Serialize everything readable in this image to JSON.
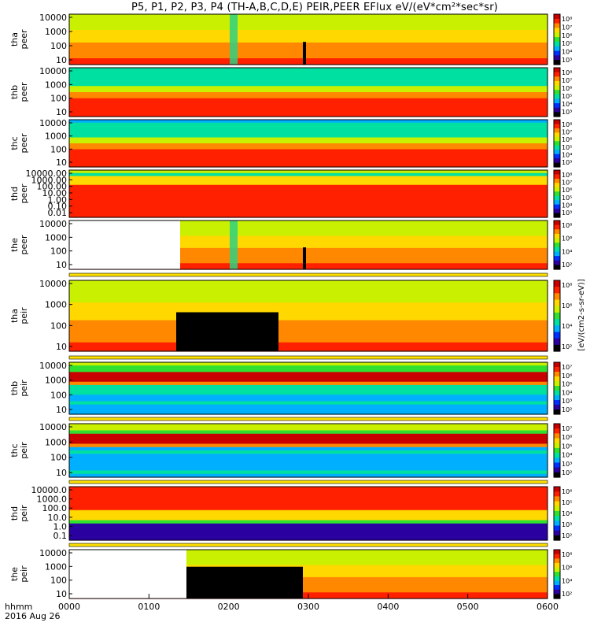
{
  "title": "P5, P1, P2, P3, P4 (TH-A,B,C,D,E) PEIR,PEER EFlux eV/(eV*cm²*sec*sr)",
  "footer": {
    "time_label": "hhmm",
    "date_label": "2016 Aug 26"
  },
  "colorbar": {
    "unit_label": "[eV/(cm2-s-sr-eV)]",
    "colormap": [
      "#000000",
      "#2a00a0",
      "#0030ff",
      "#00b0ff",
      "#00e0a0",
      "#30e030",
      "#c8f000",
      "#ffd800",
      "#ff8800",
      "#ff2000",
      "#c80000"
    ]
  },
  "chart_data": {
    "type": "heatmap",
    "x_ticks": [
      "0000",
      "0100",
      "0200",
      "0300",
      "0400",
      "0500",
      "0600"
    ],
    "x_range": [
      "00:00",
      "06:00"
    ],
    "y_scale": "log",
    "panels": [
      {
        "probe": "tha",
        "species": "peer",
        "y_ticks": [
          "10000",
          "1000",
          "100",
          "10"
        ],
        "cbar_ticks": [
          "10⁸",
          "10⁷",
          "10⁶",
          "10⁵",
          "10⁴",
          "10³"
        ]
      },
      {
        "probe": "thb",
        "species": "peer",
        "y_ticks": [
          "10000",
          "1000",
          "100",
          "10"
        ],
        "cbar_ticks": [
          "10⁸",
          "10⁷",
          "10⁶",
          "10⁵",
          "10⁴",
          "10³"
        ]
      },
      {
        "probe": "thc",
        "species": "peer",
        "y_ticks": [
          "10000",
          "1000",
          "100",
          "10"
        ],
        "cbar_ticks": [
          "10⁸",
          "10⁷",
          "10⁶",
          "10⁵",
          "10⁴",
          "10³"
        ]
      },
      {
        "probe": "thd",
        "species": "peer",
        "y_ticks": [
          "10000.00",
          "1000.00",
          "100.00",
          "10.00",
          "1.00",
          "0.10",
          "0.01"
        ],
        "cbar_ticks": [
          "10⁸",
          "10⁷",
          "10⁶",
          "10⁵",
          "10⁴",
          "10³"
        ]
      },
      {
        "probe": "the",
        "species": "peer",
        "y_ticks": [
          "10000",
          "1000",
          "100",
          "10"
        ],
        "cbar_ticks": [
          "10⁸",
          "10⁶",
          "10⁴",
          "10²"
        ]
      },
      {
        "probe": "tha",
        "species": "peir",
        "y_ticks": [
          "10000",
          "1000",
          "100",
          "10"
        ],
        "cbar_ticks": [
          "10⁸",
          "10⁶",
          "10⁴",
          "10²"
        ]
      },
      {
        "probe": "thb",
        "species": "peir",
        "y_ticks": [
          "10000",
          "1000",
          "100",
          "10"
        ],
        "cbar_ticks": [
          "10⁷",
          "10⁶",
          "10⁵",
          "10⁴",
          "10³",
          "10²"
        ]
      },
      {
        "probe": "thc",
        "species": "peir",
        "y_ticks": [
          "10000",
          "1000",
          "100",
          "10"
        ],
        "cbar_ticks": [
          "10⁷",
          "10⁶",
          "10⁵",
          "10⁴",
          "10³",
          "10²"
        ]
      },
      {
        "probe": "thd",
        "species": "peir",
        "y_ticks": [
          "10000.0",
          "1000.0",
          "100.0",
          "10.0",
          "1.0",
          "0.1"
        ],
        "cbar_ticks": [
          "10⁶",
          "10⁵",
          "10⁴",
          "10³",
          "10²"
        ]
      },
      {
        "probe": "the",
        "species": "peir",
        "y_ticks": [
          "10000",
          "1000",
          "100",
          "10"
        ],
        "cbar_ticks": [
          "10⁸",
          "10⁶",
          "10⁴",
          "10²"
        ]
      }
    ]
  }
}
